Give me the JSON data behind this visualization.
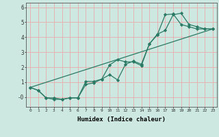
{
  "xlabel": "Humidex (Indice chaleur)",
  "bg_color": "#cce8e0",
  "grid_color": "#e8aaaa",
  "line_color": "#2a7a65",
  "xlim": [
    -0.5,
    23.5
  ],
  "ylim": [
    -0.65,
    6.3
  ],
  "xticks": [
    0,
    1,
    2,
    3,
    4,
    5,
    6,
    7,
    8,
    9,
    10,
    11,
    12,
    13,
    14,
    15,
    16,
    17,
    18,
    19,
    20,
    21,
    22,
    23
  ],
  "yticks": [
    0,
    1,
    2,
    3,
    4,
    5,
    6
  ],
  "ytick_labels": [
    "-0",
    "1",
    "2",
    "3",
    "4",
    "5",
    "6"
  ],
  "line1_x": [
    0,
    1,
    2,
    3,
    4,
    5,
    6,
    7,
    8,
    9,
    10,
    11,
    12,
    13,
    14,
    15,
    16,
    17,
    18,
    19,
    20,
    21,
    22,
    23
  ],
  "line1_y": [
    0.65,
    0.45,
    -0.05,
    -0.05,
    -0.15,
    -0.05,
    -0.05,
    1.05,
    1.05,
    1.2,
    1.5,
    1.15,
    2.2,
    2.4,
    2.2,
    3.55,
    4.2,
    4.45,
    5.5,
    5.6,
    4.85,
    4.7,
    4.55,
    4.55
  ],
  "line2_x": [
    0,
    1,
    2,
    3,
    4,
    5,
    6,
    7,
    8,
    9,
    10,
    11,
    12,
    13,
    14,
    15,
    16,
    17,
    18,
    19,
    20,
    21,
    22,
    23
  ],
  "line2_y": [
    0.65,
    0.45,
    -0.05,
    -0.15,
    -0.15,
    -0.05,
    -0.05,
    0.85,
    0.95,
    1.2,
    2.15,
    2.5,
    2.35,
    2.35,
    2.1,
    3.55,
    4.15,
    5.5,
    5.55,
    4.85,
    4.7,
    4.55,
    4.55,
    4.55
  ],
  "line3_x": [
    0,
    23
  ],
  "line3_y": [
    0.65,
    4.55
  ]
}
